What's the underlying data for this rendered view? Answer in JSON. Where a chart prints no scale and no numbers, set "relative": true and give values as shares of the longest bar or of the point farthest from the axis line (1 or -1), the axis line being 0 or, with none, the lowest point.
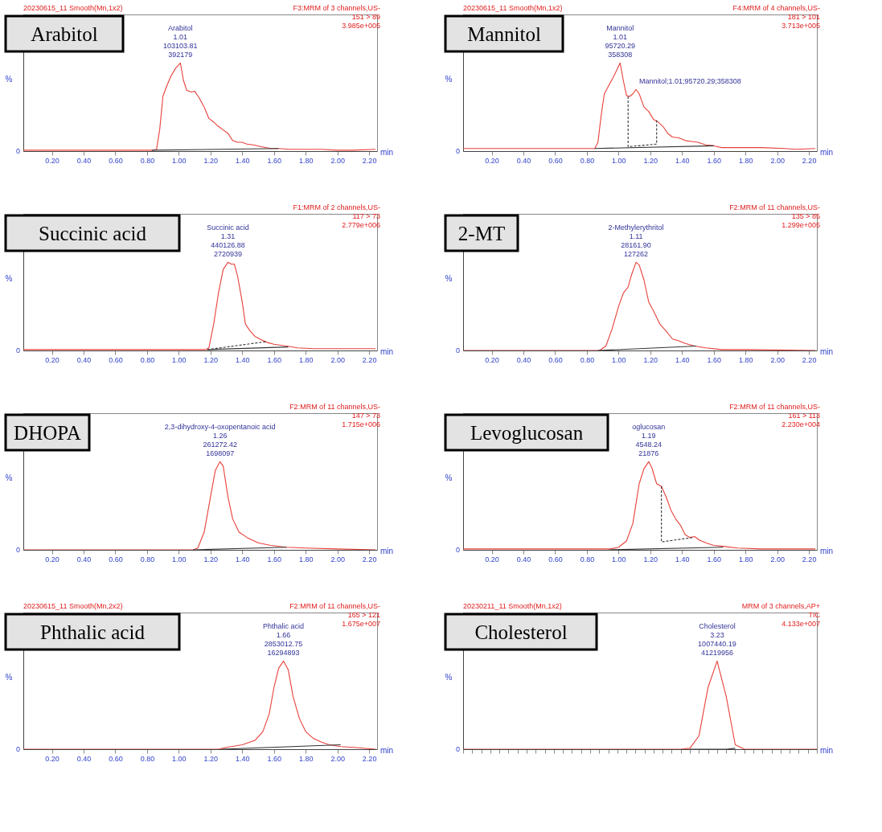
{
  "chart_data": [
    {
      "type": "line",
      "title": "Arabitol",
      "xlabel": "min",
      "ylabel": "%",
      "relative": true,
      "xlim": [
        0.02,
        2.25
      ],
      "xticks": [
        {
          "value": 0.2,
          "label": "0.20"
        },
        {
          "value": 0.4,
          "label": "0.40"
        },
        {
          "value": 0.6,
          "label": "0.60"
        },
        {
          "value": 0.8,
          "label": "0.80"
        },
        {
          "value": 1.0,
          "label": "1.00"
        },
        {
          "value": 1.2,
          "label": "1.20"
        },
        {
          "value": 1.4,
          "label": "1.40"
        },
        {
          "value": 1.6,
          "label": "1.60"
        },
        {
          "value": 1.8,
          "label": "1.80"
        },
        {
          "value": 2.0,
          "label": "2.00"
        },
        {
          "value": 2.2,
          "label": "2.20"
        }
      ],
      "x": [
        0.02,
        0.3,
        0.6,
        0.8,
        0.84,
        0.86,
        0.88,
        0.9,
        0.92,
        0.95,
        0.98,
        1.01,
        1.03,
        1.05,
        1.08,
        1.1,
        1.13,
        1.16,
        1.19,
        1.22,
        1.25,
        1.28,
        1.31,
        1.34,
        1.37,
        1.4,
        1.43,
        1.47,
        1.52,
        1.58,
        1.63,
        1.7,
        1.8,
        1.9,
        2.0,
        2.1,
        2.24
      ],
      "series": [
        {
          "color": "#e8403a",
          "values": [
            0.01,
            0.01,
            0.01,
            0.01,
            0.01,
            0.02,
            0.25,
            0.62,
            0.72,
            0.85,
            0.94,
            1.0,
            0.8,
            0.69,
            0.67,
            0.68,
            0.6,
            0.5,
            0.37,
            0.33,
            0.28,
            0.24,
            0.2,
            0.12,
            0.1,
            0.1,
            0.08,
            0.07,
            0.05,
            0.03,
            0.03,
            0.02,
            0.02,
            0.02,
            0.01,
            0.01,
            0.02
          ]
        },
        {
          "type": "line",
          "color": "#333333",
          "x": [
            0.83,
            1.63
          ],
          "values": [
            0.01,
            0.03
          ]
        }
      ],
      "annotations": [
        "F3:MRM of 3 channels,US-\n151 > 89\n3.985e+005",
        "0",
        "20230615_11 Smooth(Mn,1x2)",
        {
          "text": "Arabitol\n1.01\n103103.81\n392179",
          "x": 1.01,
          "y": 1.0
        }
      ]
    },
    {
      "type": "line",
      "title": "Mannitol",
      "xlabel": "min",
      "ylabel": "%",
      "relative": true,
      "xlim": [
        0.02,
        2.25
      ],
      "xticks": [
        {
          "value": 0.2,
          "label": "0.20"
        },
        {
          "value": 0.4,
          "label": "0.40"
        },
        {
          "value": 0.6,
          "label": "0.60"
        },
        {
          "value": 0.8,
          "label": "0.80"
        },
        {
          "value": 1.0,
          "label": "1.00"
        },
        {
          "value": 1.2,
          "label": "1.20"
        },
        {
          "value": 1.4,
          "label": "1.40"
        },
        {
          "value": 1.6,
          "label": "1.60"
        },
        {
          "value": 1.8,
          "label": "1.80"
        },
        {
          "value": 2.0,
          "label": "2.00"
        },
        {
          "value": 2.2,
          "label": "2.20"
        }
      ],
      "x": [
        0.02,
        0.3,
        0.6,
        0.85,
        0.87,
        0.89,
        0.91,
        0.94,
        0.97,
        1.01,
        1.03,
        1.05,
        1.07,
        1.09,
        1.11,
        1.13,
        1.16,
        1.19,
        1.22,
        1.25,
        1.28,
        1.31,
        1.34,
        1.38,
        1.42,
        1.46,
        1.5,
        1.55,
        1.6,
        1.65,
        1.75,
        1.9,
        2.05,
        2.12,
        2.24
      ],
      "series": [
        {
          "color": "#e8403a",
          "values": [
            0.03,
            0.03,
            0.03,
            0.03,
            0.1,
            0.4,
            0.65,
            0.75,
            0.85,
            1.0,
            0.8,
            0.63,
            0.62,
            0.65,
            0.7,
            0.65,
            0.5,
            0.45,
            0.36,
            0.33,
            0.28,
            0.2,
            0.16,
            0.15,
            0.12,
            0.11,
            0.1,
            0.07,
            0.06,
            0.04,
            0.04,
            0.04,
            0.03,
            0.02,
            0.03
          ]
        },
        {
          "type": "line",
          "color": "#333333",
          "x": [
            0.85,
            1.6
          ],
          "values": [
            0.03,
            0.06
          ]
        },
        {
          "type": "line",
          "color": "#333333",
          "line_style": "dashed",
          "x": [
            1.06,
            1.06,
            1.24,
            1.24
          ],
          "values": [
            0.62,
            0.05,
            0.08,
            0.35
          ]
        }
      ],
      "annotations": [
        "F4:MRM of 4 channels,US-\n181 > 101\n3.713e+005",
        "0",
        "20230615_11 Smooth(Mn,1x2)",
        {
          "text": "Mannitol\n1.01\n95720.29\n358308",
          "x": 1.01,
          "y": 1.0
        },
        {
          "text": "Mannitol;1.01;95720.29;358308",
          "x": 1.11,
          "y": 0.7
        }
      ]
    },
    {
      "type": "line",
      "title": "Succinic acid",
      "xlabel": "min",
      "ylabel": "%",
      "relative": true,
      "xlim": [
        0.02,
        2.25
      ],
      "xticks": [
        {
          "value": 0.2,
          "label": "0.20"
        },
        {
          "value": 0.4,
          "label": "0.40"
        },
        {
          "value": 0.6,
          "label": "0.60"
        },
        {
          "value": 0.8,
          "label": "0.80"
        },
        {
          "value": 1.0,
          "label": "1.00"
        },
        {
          "value": 1.2,
          "label": "1.20"
        },
        {
          "value": 1.4,
          "label": "1.40"
        },
        {
          "value": 1.6,
          "label": "1.60"
        },
        {
          "value": 1.8,
          "label": "1.80"
        },
        {
          "value": 2.0,
          "label": "2.00"
        },
        {
          "value": 2.2,
          "label": "2.20"
        }
      ],
      "x": [
        0.02,
        0.3,
        0.6,
        0.9,
        1.17,
        1.19,
        1.22,
        1.25,
        1.28,
        1.31,
        1.33,
        1.35,
        1.37,
        1.4,
        1.42,
        1.45,
        1.48,
        1.52,
        1.56,
        1.6,
        1.68,
        1.75,
        1.85,
        2.0,
        2.24
      ],
      "series": [
        {
          "color": "#e8403a",
          "values": [
            0.01,
            0.01,
            0.01,
            0.01,
            0.01,
            0.03,
            0.3,
            0.65,
            0.92,
            1.0,
            0.98,
            0.98,
            0.85,
            0.55,
            0.3,
            0.22,
            0.16,
            0.12,
            0.09,
            0.07,
            0.05,
            0.03,
            0.02,
            0.02,
            0.02
          ]
        },
        {
          "type": "line",
          "color": "#333333",
          "x": [
            1.18,
            1.69
          ],
          "values": [
            0.01,
            0.04
          ]
        },
        {
          "type": "line",
          "color": "#333333",
          "line_style": "dashed",
          "x": [
            1.18,
            1.55
          ],
          "values": [
            0.01,
            0.1
          ]
        }
      ],
      "annotations": [
        "F1:MRM of 2 channels,US-\n117 > 73\n2.779e+006",
        "0",
        {
          "text": "Succinic acid\n1.31\n440126.88\n2720939",
          "x": 1.31,
          "y": 1.0
        }
      ]
    },
    {
      "type": "line",
      "title": "2-MT",
      "xlabel": "min",
      "ylabel": "%",
      "relative": true,
      "xlim": [
        0.02,
        2.25
      ],
      "xticks": [
        {
          "value": 0.2,
          "label": "0.20"
        },
        {
          "value": 0.4,
          "label": "0.40"
        },
        {
          "value": 0.6,
          "label": "0.60"
        },
        {
          "value": 0.8,
          "label": "0.80"
        },
        {
          "value": 1.0,
          "label": "1.00"
        },
        {
          "value": 1.2,
          "label": "1.20"
        },
        {
          "value": 1.4,
          "label": "1.40"
        },
        {
          "value": 1.6,
          "label": "1.60"
        },
        {
          "value": 1.8,
          "label": "1.80"
        },
        {
          "value": 2.0,
          "label": "2.00"
        },
        {
          "value": 2.2,
          "label": "2.20"
        }
      ],
      "x": [
        0.02,
        0.3,
        0.6,
        0.88,
        0.92,
        0.96,
        1.0,
        1.03,
        1.06,
        1.08,
        1.11,
        1.13,
        1.16,
        1.19,
        1.22,
        1.26,
        1.3,
        1.34,
        1.38,
        1.42,
        1.48,
        1.55,
        1.65,
        1.8,
        2.24
      ],
      "series": [
        {
          "color": "#e8403a",
          "values": [
            0.0,
            0.0,
            0.0,
            0.0,
            0.05,
            0.25,
            0.5,
            0.65,
            0.72,
            0.85,
            1.0,
            0.97,
            0.8,
            0.55,
            0.45,
            0.3,
            0.22,
            0.13,
            0.11,
            0.08,
            0.05,
            0.03,
            0.01,
            0.01,
            0.0
          ]
        },
        {
          "type": "line",
          "color": "#333333",
          "x": [
            0.87,
            1.49
          ],
          "values": [
            0.0,
            0.05
          ]
        }
      ],
      "annotations": [
        "F2:MRM of 11 channels,US-\n135 > 85\n1.299e+005",
        "0",
        {
          "text": "2-Methylerythritol\n1.11\n28161.90\n127262",
          "x": 1.11,
          "y": 1.0
        }
      ]
    },
    {
      "type": "line",
      "title": "DHOPA",
      "xlabel": "min",
      "ylabel": "%",
      "relative": true,
      "xlim": [
        0.02,
        2.25
      ],
      "xticks": [
        {
          "value": 0.2,
          "label": "0.20"
        },
        {
          "value": 0.4,
          "label": "0.40"
        },
        {
          "value": 0.6,
          "label": "0.60"
        },
        {
          "value": 0.8,
          "label": "0.80"
        },
        {
          "value": 1.0,
          "label": "1.00"
        },
        {
          "value": 1.2,
          "label": "1.20"
        },
        {
          "value": 1.4,
          "label": "1.40"
        },
        {
          "value": 1.6,
          "label": "1.60"
        },
        {
          "value": 1.8,
          "label": "1.80"
        },
        {
          "value": 2.0,
          "label": "2.00"
        },
        {
          "value": 2.2,
          "label": "2.20"
        }
      ],
      "x": [
        0.02,
        0.3,
        0.6,
        0.9,
        1.09,
        1.12,
        1.16,
        1.2,
        1.23,
        1.26,
        1.28,
        1.31,
        1.34,
        1.38,
        1.43,
        1.5,
        1.58,
        1.68,
        1.8,
        2.0,
        2.24
      ],
      "series": [
        {
          "color": "#e8403a",
          "values": [
            0.0,
            0.0,
            0.0,
            0.0,
            0.0,
            0.02,
            0.2,
            0.6,
            0.9,
            1.0,
            0.95,
            0.6,
            0.35,
            0.2,
            0.14,
            0.08,
            0.05,
            0.03,
            0.02,
            0.01,
            0.0
          ]
        },
        {
          "type": "line",
          "color": "#333333",
          "x": [
            1.09,
            1.68
          ],
          "values": [
            0.0,
            0.03
          ]
        }
      ],
      "annotations": [
        "F2:MRM of 11 channels,US-\n147 > 73\n1.715e+006",
        "0",
        {
          "text": "2,3-dihydroxy-4-oxopentanoic acid\n1.26\n261272.42\n1698097",
          "x": 1.26,
          "y": 1.0
        }
      ]
    },
    {
      "type": "line",
      "title": "Levoglucosan",
      "xlabel": "min",
      "ylabel": "%",
      "relative": true,
      "xlim": [
        0.02,
        2.25
      ],
      "xticks": [
        {
          "value": 0.2,
          "label": "0.20"
        },
        {
          "value": 0.4,
          "label": "0.40"
        },
        {
          "value": 0.6,
          "label": "0.60"
        },
        {
          "value": 0.8,
          "label": "0.80"
        },
        {
          "value": 1.0,
          "label": "1.00"
        },
        {
          "value": 1.2,
          "label": "1.20"
        },
        {
          "value": 1.4,
          "label": "1.40"
        },
        {
          "value": 1.6,
          "label": "1.60"
        },
        {
          "value": 1.8,
          "label": "1.80"
        },
        {
          "value": 2.0,
          "label": "2.00"
        },
        {
          "value": 2.2,
          "label": "2.20"
        }
      ],
      "x": [
        0.02,
        0.3,
        0.6,
        0.95,
        1.0,
        1.05,
        1.09,
        1.13,
        1.16,
        1.19,
        1.21,
        1.24,
        1.27,
        1.3,
        1.33,
        1.36,
        1.39,
        1.42,
        1.45,
        1.48,
        1.51,
        1.55,
        1.6,
        1.66,
        1.75,
        1.9,
        2.24
      ],
      "series": [
        {
          "color": "#e8403a",
          "values": [
            0.01,
            0.01,
            0.01,
            0.01,
            0.03,
            0.1,
            0.3,
            0.75,
            0.92,
            1.0,
            0.93,
            0.75,
            0.72,
            0.6,
            0.45,
            0.35,
            0.28,
            0.17,
            0.14,
            0.15,
            0.11,
            0.08,
            0.05,
            0.04,
            0.02,
            0.01,
            0.01
          ]
        },
        {
          "type": "line",
          "color": "#333333",
          "x": [
            0.94,
            1.66
          ],
          "values": [
            0.0,
            0.03
          ]
        },
        {
          "type": "line",
          "color": "#333333",
          "line_style": "dashed",
          "x": [
            1.27,
            1.27,
            1.47
          ],
          "values": [
            0.72,
            0.09,
            0.14
          ]
        }
      ],
      "annotations": [
        "F2:MRM of 11 channels,US-\n161 > 113\n2.230e+004",
        "0",
        {
          "text": "oglucosan\n1.19\n4548.24\n21876",
          "x": 1.19,
          "y": 1.0
        }
      ]
    },
    {
      "type": "line",
      "title": "Phthalic acid",
      "xlabel": "min",
      "ylabel": "%",
      "relative": true,
      "xlim": [
        0.02,
        2.25
      ],
      "xticks": [
        {
          "value": 0.2,
          "label": "0.20"
        },
        {
          "value": 0.4,
          "label": "0.40"
        },
        {
          "value": 0.6,
          "label": "0.60"
        },
        {
          "value": 0.8,
          "label": "0.80"
        },
        {
          "value": 1.0,
          "label": "1.00"
        },
        {
          "value": 1.2,
          "label": "1.20"
        },
        {
          "value": 1.4,
          "label": "1.40"
        },
        {
          "value": 1.6,
          "label": "1.60"
        },
        {
          "value": 1.8,
          "label": "1.80"
        },
        {
          "value": 2.0,
          "label": "2.00"
        },
        {
          "value": 2.2,
          "label": "2.20"
        }
      ],
      "x": [
        0.02,
        0.3,
        0.6,
        0.9,
        1.25,
        1.3,
        1.4,
        1.48,
        1.53,
        1.57,
        1.6,
        1.63,
        1.66,
        1.69,
        1.72,
        1.76,
        1.8,
        1.85,
        1.9,
        1.95,
        2.02,
        2.1,
        2.24
      ],
      "series": [
        {
          "color": "#e8403a",
          "values": [
            0.0,
            0.0,
            0.0,
            0.0,
            0.0,
            0.02,
            0.05,
            0.1,
            0.2,
            0.4,
            0.7,
            0.92,
            1.0,
            0.9,
            0.6,
            0.35,
            0.2,
            0.12,
            0.08,
            0.05,
            0.03,
            0.02,
            0.0
          ]
        },
        {
          "type": "line",
          "color": "#333333",
          "x": [
            1.27,
            2.02
          ],
          "values": [
            0.0,
            0.05
          ]
        }
      ],
      "annotations": [
        "F2:MRM of 11 channels,US-\n165 > 121\n1.675e+007",
        "0",
        "20230615_11 Smooth(Mn,2x2)",
        {
          "text": "Phthalic acid\n1.66\n2853012.75\n16294893",
          "x": 1.66,
          "y": 1.0
        }
      ]
    },
    {
      "type": "line",
      "title": "Cholesterol",
      "xlabel": "min",
      "ylabel": "%",
      "relative": true,
      "categories": [
        null,
        null,
        null,
        null,
        null,
        null,
        null,
        null,
        null,
        null,
        null,
        null,
        null,
        null,
        null,
        null,
        null,
        null,
        null,
        null,
        null,
        null,
        null,
        null,
        null,
        null,
        null,
        null,
        null,
        null,
        null,
        null,
        null,
        null,
        null,
        null,
        null,
        null,
        null,
        null
      ],
      "series": [
        {
          "color": "#e8403a",
          "values": [
            0.0,
            0.0,
            0.0,
            0.0,
            0.0,
            0.0,
            0.0,
            0.0,
            0.0,
            0.0,
            0.0,
            0.0,
            0.0,
            0.0,
            0.0,
            0.0,
            0.0,
            0.0,
            0.0,
            0.0,
            0.0,
            0.0,
            0.0,
            0.0,
            0.0,
            0.01,
            0.15,
            0.7,
            1.0,
            0.6,
            0.05,
            0.0,
            0.0,
            0.0,
            0.0,
            0.0,
            0.0,
            0.0,
            0.0,
            0.0
          ]
        },
        {
          "type": "line",
          "color": "#333333",
          "values": [
            null,
            null,
            null,
            null,
            null,
            null,
            null,
            null,
            null,
            null,
            null,
            null,
            null,
            null,
            null,
            null,
            null,
            null,
            null,
            null,
            null,
            null,
            null,
            null,
            null,
            0.0,
            0.0,
            0.0,
            0.0,
            0.0,
            0.01,
            null,
            null,
            null,
            null,
            null,
            null,
            null,
            null,
            null
          ]
        }
      ],
      "annotations": [
        "MRM of 3 channels,AP+\nTIC\n4.133e+007",
        "0",
        "20230211_11 Smooth(Mn,1x2)",
        "Cholesterol\n3.23\n1007440.19\n41219956"
      ]
    }
  ]
}
